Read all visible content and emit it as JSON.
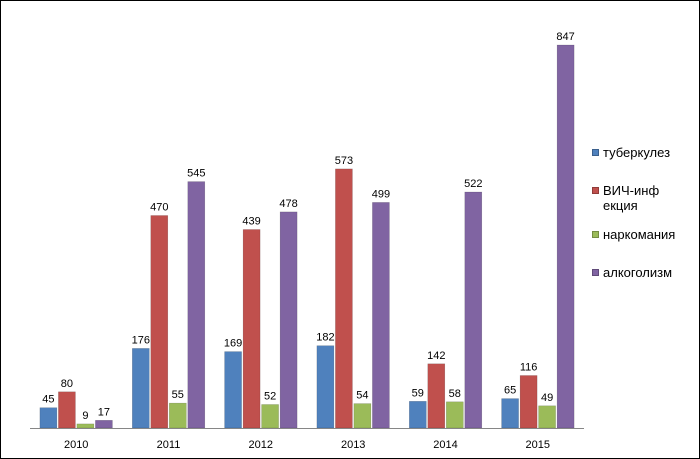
{
  "chart_data": {
    "type": "bar",
    "categories": [
      "2010",
      "2011",
      "2012",
      "2013",
      "2014",
      "2015"
    ],
    "series": [
      {
        "name": "туберкулез",
        "color": "#4f81bd",
        "values": [
          45,
          176,
          169,
          182,
          59,
          65
        ]
      },
      {
        "name": "ВИЧ-инфекция",
        "color": "#c0504d",
        "values": [
          80,
          470,
          439,
          573,
          142,
          116
        ]
      },
      {
        "name": "наркомания",
        "color": "#9bbb59",
        "values": [
          9,
          55,
          52,
          54,
          58,
          49
        ]
      },
      {
        "name": "алкоголизм",
        "color": "#8064a2",
        "values": [
          17,
          545,
          478,
          499,
          522,
          847
        ]
      }
    ],
    "ylim": [
      0,
      847
    ],
    "grid": false,
    "legend_position": "right",
    "title": "",
    "xlabel": "",
    "ylabel": ""
  }
}
